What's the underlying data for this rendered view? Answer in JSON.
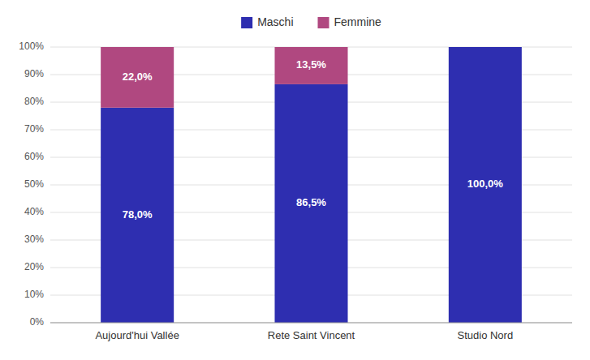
{
  "chart_data": {
    "type": "bar",
    "stacked": true,
    "categories": [
      "Aujourd'hui Vallée",
      "Rete Saint Vincent",
      "Studio Nord"
    ],
    "series": [
      {
        "name": "Maschi",
        "color": "#2E2EB0",
        "values": [
          78.0,
          86.5,
          100.0
        ],
        "value_labels": [
          "78,0%",
          "86,5%",
          "100,0%"
        ]
      },
      {
        "name": "Femmine",
        "color": "#B04880",
        "values": [
          22.0,
          13.5,
          0.0
        ],
        "value_labels": [
          "22,0%",
          "13,5%",
          null
        ]
      }
    ],
    "ylim": [
      0,
      100
    ],
    "yticks": [
      {
        "value": 0,
        "label": "0%"
      },
      {
        "value": 10,
        "label": "10%"
      },
      {
        "value": 20,
        "label": "20%"
      },
      {
        "value": 30,
        "label": "30%"
      },
      {
        "value": 40,
        "label": "40%"
      },
      {
        "value": 50,
        "label": "50%"
      },
      {
        "value": 60,
        "label": "60%"
      },
      {
        "value": 70,
        "label": "70%"
      },
      {
        "value": 80,
        "label": "80%"
      },
      {
        "value": 90,
        "label": "90%"
      },
      {
        "value": 100,
        "label": "100%"
      }
    ],
    "grid": true,
    "legend": "top",
    "data_labels": true
  }
}
